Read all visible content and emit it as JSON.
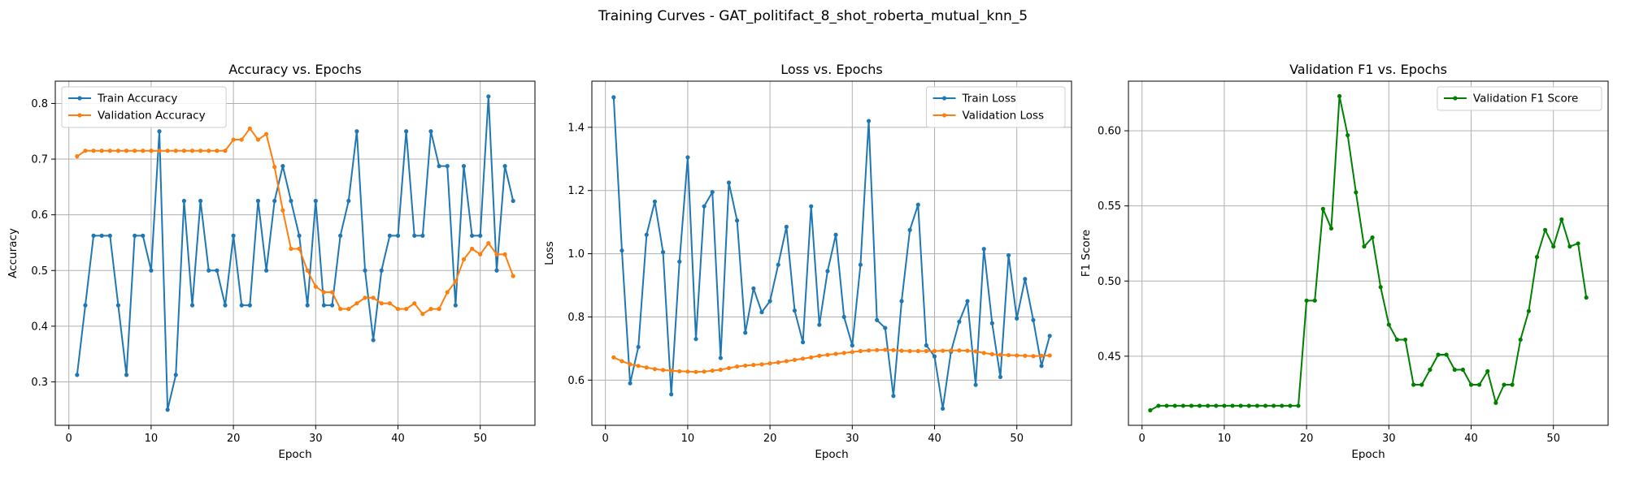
{
  "suptitle": "Training Curves - GAT_politifact_8_shot_roberta_mutual_knn_5",
  "colors": {
    "train": "#1f77b4",
    "validation": "#ff7f0e",
    "f1": "#008000",
    "grid": "#b0b0b0"
  },
  "chart_data": [
    {
      "type": "line",
      "title": "Accuracy vs. Epochs",
      "xlabel": "Epoch",
      "ylabel": "Accuracy",
      "xlim": [
        -1.65,
        56.65
      ],
      "ylim": [
        0.222,
        0.84
      ],
      "xticks": [
        0,
        10,
        20,
        30,
        40,
        50
      ],
      "yticks": [
        0.3,
        0.4,
        0.5,
        0.6,
        0.7,
        0.8
      ],
      "ytick_labels": [
        "0.3",
        "0.4",
        "0.5",
        "0.6",
        "0.7",
        "0.8"
      ],
      "legend_loc": "upper-left",
      "grid": true,
      "series": [
        {
          "name": "Train Accuracy",
          "color": "#1f77b4",
          "x": [
            1,
            2,
            3,
            4,
            5,
            6,
            7,
            8,
            9,
            10,
            11,
            12,
            13,
            14,
            15,
            16,
            17,
            18,
            19,
            20,
            21,
            22,
            23,
            24,
            25,
            26,
            27,
            28,
            29,
            30,
            31,
            32,
            33,
            34,
            35,
            36,
            37,
            38,
            39,
            40,
            41,
            42,
            43,
            44,
            45,
            46,
            47,
            48,
            49,
            50,
            51,
            52,
            53,
            54
          ],
          "y": [
            0.3125,
            0.4375,
            0.5625,
            0.5625,
            0.5625,
            0.4375,
            0.3125,
            0.5625,
            0.5625,
            0.5,
            0.75,
            0.25,
            0.3125,
            0.625,
            0.4375,
            0.625,
            0.5,
            0.5,
            0.4375,
            0.5625,
            0.4375,
            0.4375,
            0.625,
            0.5,
            0.625,
            0.6875,
            0.625,
            0.5625,
            0.4375,
            0.625,
            0.4375,
            0.4375,
            0.5625,
            0.625,
            0.75,
            0.5,
            0.375,
            0.5,
            0.5625,
            0.5625,
            0.75,
            0.5625,
            0.5625,
            0.75,
            0.6875,
            0.6875,
            0.4375,
            0.6875,
            0.5625,
            0.5625,
            0.8125,
            0.5,
            0.6875,
            0.625
          ]
        },
        {
          "name": "Validation Accuracy",
          "color": "#ff7f0e",
          "x": [
            1,
            2,
            3,
            4,
            5,
            6,
            7,
            8,
            9,
            10,
            11,
            12,
            13,
            14,
            15,
            16,
            17,
            18,
            19,
            20,
            21,
            22,
            23,
            24,
            25,
            26,
            27,
            28,
            29,
            30,
            31,
            32,
            33,
            34,
            35,
            36,
            37,
            38,
            39,
            40,
            41,
            42,
            43,
            44,
            45,
            46,
            47,
            48,
            49,
            50,
            51,
            52,
            53,
            54
          ],
          "y": [
            0.705,
            0.715,
            0.715,
            0.715,
            0.715,
            0.715,
            0.715,
            0.715,
            0.715,
            0.715,
            0.715,
            0.715,
            0.715,
            0.715,
            0.715,
            0.715,
            0.715,
            0.715,
            0.715,
            0.735,
            0.735,
            0.755,
            0.735,
            0.745,
            0.686,
            0.608,
            0.539,
            0.539,
            0.5,
            0.471,
            0.461,
            0.461,
            0.431,
            0.431,
            0.441,
            0.451,
            0.451,
            0.441,
            0.441,
            0.431,
            0.431,
            0.441,
            0.422,
            0.431,
            0.431,
            0.461,
            0.48,
            0.52,
            0.539,
            0.529,
            0.549,
            0.529,
            0.529,
            0.49
          ]
        }
      ]
    },
    {
      "type": "line",
      "title": "Loss vs. Epochs",
      "xlabel": "Epoch",
      "ylabel": "Loss",
      "xlim": [
        -1.65,
        56.65
      ],
      "ylim": [
        0.457,
        1.546
      ],
      "xticks": [
        0,
        10,
        20,
        30,
        40,
        50
      ],
      "yticks": [
        0.6,
        0.8,
        1.0,
        1.2,
        1.4
      ],
      "ytick_labels": [
        "0.6",
        "0.8",
        "1.0",
        "1.2",
        "1.4"
      ],
      "legend_loc": "upper-right",
      "grid": true,
      "series": [
        {
          "name": "Train Loss",
          "color": "#1f77b4",
          "x": [
            1,
            2,
            3,
            4,
            5,
            6,
            7,
            8,
            9,
            10,
            11,
            12,
            13,
            14,
            15,
            16,
            17,
            18,
            19,
            20,
            21,
            22,
            23,
            24,
            25,
            26,
            27,
            28,
            29,
            30,
            31,
            32,
            33,
            34,
            35,
            36,
            37,
            38,
            39,
            40,
            41,
            42,
            43,
            44,
            45,
            46,
            47,
            48,
            49,
            50,
            51,
            52,
            53,
            54
          ],
          "y": [
            1.495,
            1.01,
            0.59,
            0.705,
            1.06,
            1.165,
            1.005,
            0.555,
            0.975,
            1.305,
            0.73,
            1.15,
            1.195,
            0.67,
            1.225,
            1.105,
            0.75,
            0.89,
            0.815,
            0.85,
            0.965,
            1.085,
            0.82,
            0.72,
            1.15,
            0.775,
            0.945,
            1.06,
            0.8,
            0.71,
            0.965,
            1.42,
            0.79,
            0.765,
            0.55,
            0.85,
            1.075,
            1.155,
            0.71,
            0.675,
            0.51,
            0.69,
            0.785,
            0.85,
            0.585,
            1.015,
            0.78,
            0.61,
            0.995,
            0.795,
            0.92,
            0.79,
            0.645,
            0.74
          ]
        },
        {
          "name": "Validation Loss",
          "color": "#ff7f0e",
          "x": [
            1,
            2,
            3,
            4,
            5,
            6,
            7,
            8,
            9,
            10,
            11,
            12,
            13,
            14,
            15,
            16,
            17,
            18,
            19,
            20,
            21,
            22,
            23,
            24,
            25,
            26,
            27,
            28,
            29,
            30,
            31,
            32,
            33,
            34,
            35,
            36,
            37,
            38,
            39,
            40,
            41,
            42,
            43,
            44,
            45,
            46,
            47,
            48,
            49,
            50,
            51,
            52,
            53,
            54
          ],
          "y": [
            0.672,
            0.66,
            0.65,
            0.645,
            0.64,
            0.635,
            0.632,
            0.63,
            0.628,
            0.627,
            0.626,
            0.627,
            0.63,
            0.633,
            0.638,
            0.643,
            0.646,
            0.648,
            0.65,
            0.653,
            0.656,
            0.66,
            0.664,
            0.668,
            0.672,
            0.677,
            0.68,
            0.683,
            0.686,
            0.689,
            0.692,
            0.694,
            0.695,
            0.696,
            0.695,
            0.693,
            0.692,
            0.692,
            0.692,
            0.692,
            0.693,
            0.694,
            0.694,
            0.693,
            0.691,
            0.686,
            0.682,
            0.68,
            0.679,
            0.678,
            0.677,
            0.676,
            0.677,
            0.678
          ]
        }
      ]
    },
    {
      "type": "line",
      "title": "Validation F1 vs. Epochs",
      "xlabel": "Epoch",
      "ylabel": "F1 Score",
      "xlim": [
        -1.65,
        56.65
      ],
      "ylim": [
        0.404,
        0.633
      ],
      "xticks": [
        0,
        10,
        20,
        30,
        40,
        50
      ],
      "yticks": [
        0.45,
        0.5,
        0.55,
        0.6
      ],
      "ytick_labels": [
        "0.45",
        "0.50",
        "0.55",
        "0.60"
      ],
      "legend_loc": "upper-right",
      "grid": true,
      "series": [
        {
          "name": "Validation F1 Score",
          "color": "#008000",
          "x": [
            1,
            2,
            3,
            4,
            5,
            6,
            7,
            8,
            9,
            10,
            11,
            12,
            13,
            14,
            15,
            16,
            17,
            18,
            19,
            20,
            21,
            22,
            23,
            24,
            25,
            26,
            27,
            28,
            29,
            30,
            31,
            32,
            33,
            34,
            35,
            36,
            37,
            38,
            39,
            40,
            41,
            42,
            43,
            44,
            45,
            46,
            47,
            48,
            49,
            50,
            51,
            52,
            53,
            54
          ],
          "y": [
            0.414,
            0.417,
            0.417,
            0.417,
            0.417,
            0.417,
            0.417,
            0.417,
            0.417,
            0.417,
            0.417,
            0.417,
            0.417,
            0.417,
            0.417,
            0.417,
            0.417,
            0.417,
            0.417,
            0.487,
            0.487,
            0.548,
            0.535,
            0.623,
            0.597,
            0.559,
            0.523,
            0.529,
            0.496,
            0.471,
            0.461,
            0.461,
            0.431,
            0.431,
            0.441,
            0.451,
            0.451,
            0.441,
            0.441,
            0.431,
            0.431,
            0.44,
            0.419,
            0.431,
            0.431,
            0.461,
            0.48,
            0.516,
            0.534,
            0.523,
            0.541,
            0.523,
            0.525,
            0.489
          ]
        }
      ]
    }
  ]
}
